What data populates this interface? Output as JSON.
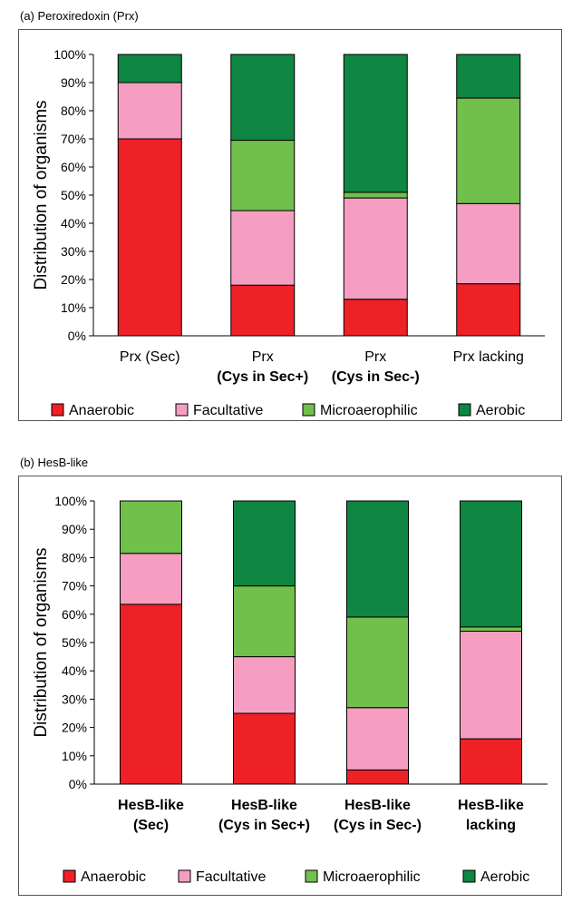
{
  "colors": {
    "Anaerobic": "#ee2126",
    "Facultative": "#f59ec2",
    "Microaerophilic": "#70c04b",
    "Aerobic": "#0f8642"
  },
  "panel_a": {
    "label": "(a) Peroxiredoxin (Prx)"
  },
  "panel_b": {
    "label": "(b) HesB-like"
  },
  "chart_data": [
    {
      "type": "bar",
      "stacked": true,
      "title": "(a) Peroxiredoxin (Prx)",
      "ylabel": "Distribution of organisms",
      "ylim": [
        0,
        100
      ],
      "yticks": [
        "0%",
        "10%",
        "20%",
        "30%",
        "40%",
        "50%",
        "60%",
        "70%",
        "80%",
        "90%",
        "100%"
      ],
      "categories": [
        [
          "Prx (Sec)"
        ],
        [
          "Prx",
          "(Cys in Sec+)"
        ],
        [
          "Prx",
          "(Cys in Sec-)"
        ],
        [
          "Prx lacking"
        ]
      ],
      "series": [
        {
          "name": "Anaerobic",
          "values": [
            70,
            18,
            13,
            18.5
          ]
        },
        {
          "name": "Facultative",
          "values": [
            20,
            26.5,
            36,
            28.5
          ]
        },
        {
          "name": "Microaerophilic",
          "values": [
            0,
            25,
            2,
            37.5
          ]
        },
        {
          "name": "Aerobic",
          "values": [
            10,
            30.5,
            49,
            15.5
          ]
        }
      ],
      "legend_position": "bottom"
    },
    {
      "type": "bar",
      "stacked": true,
      "title": "(b) HesB-like",
      "ylabel": "Distribution of organisms",
      "ylim": [
        0,
        100
      ],
      "yticks": [
        "0%",
        "10%",
        "20%",
        "30%",
        "40%",
        "50%",
        "60%",
        "70%",
        "80%",
        "90%",
        "100%"
      ],
      "categories": [
        [
          "HesB-like",
          "(Sec)"
        ],
        [
          "HesB-like",
          "(Cys in Sec+)"
        ],
        [
          "HesB-like",
          "(Cys in Sec-)"
        ],
        [
          "HesB-like",
          "lacking"
        ]
      ],
      "series": [
        {
          "name": "Anaerobic",
          "values": [
            63.5,
            25,
            5,
            16
          ]
        },
        {
          "name": "Facultative",
          "values": [
            18,
            20,
            22,
            38
          ]
        },
        {
          "name": "Microaerophilic",
          "values": [
            18.5,
            25,
            32,
            1.5
          ]
        },
        {
          "name": "Aerobic",
          "values": [
            0,
            30,
            41,
            44.5
          ]
        }
      ],
      "legend_position": "bottom"
    }
  ]
}
